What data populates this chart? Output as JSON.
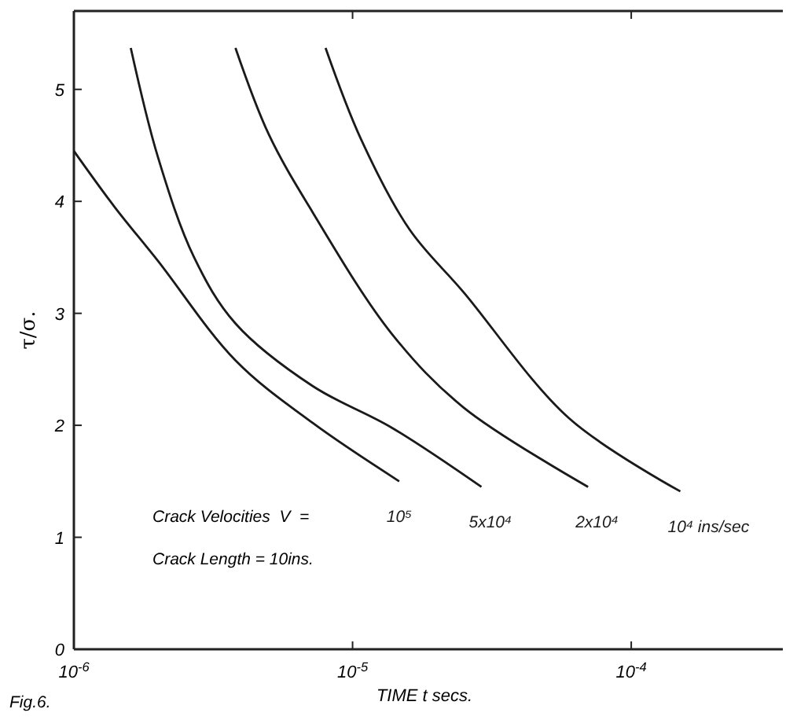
{
  "chart_data": {
    "type": "line",
    "xlabel": "TIME  t secs.",
    "ylabel": "τ/σ.",
    "log": "x",
    "xlim": [
      1e-06,
      0.00035
    ],
    "ylim": [
      0,
      5.7
    ],
    "xticks": [
      {
        "value": 1e-06,
        "label": "10$^{-6}$"
      },
      {
        "value": 1e-05,
        "label": "10$^{-5}$"
      },
      {
        "value": 0.0001,
        "label": "10$^{-4}$"
      }
    ],
    "yticks": [
      0,
      1,
      2,
      3,
      4,
      5
    ],
    "grid": false,
    "marker": "none",
    "line_style": "solid",
    "annotations": [
      "Crack Velocities  V  =",
      "Crack Length = 10ins.",
      "Fig.6."
    ],
    "series": [
      {
        "name": "10⁵",
        "color": "#1a1a1a",
        "x": [
          1e-06,
          1.4e-06,
          2e-06,
          3.8e-06,
          7.2e-06,
          1.47e-05
        ],
        "values": [
          4.45,
          3.95,
          3.47,
          2.58,
          2.02,
          1.5
        ]
      },
      {
        "name": "5x10⁴",
        "color": "#1a1a1a",
        "x": [
          1.6e-06,
          2e-06,
          2.7e-06,
          3.8e-06,
          7.2e-06,
          1.38e-05,
          2.9e-05
        ],
        "values": [
          5.37,
          4.4,
          3.5,
          2.91,
          2.35,
          1.98,
          1.45
        ]
      },
      {
        "name": "2x10⁴",
        "color": "#1a1a1a",
        "x": [
          3.8e-06,
          5e-06,
          7.2e-06,
          1.38e-05,
          2.5e-05,
          7e-05
        ],
        "values": [
          5.37,
          4.6,
          3.9,
          2.82,
          2.16,
          1.45
        ]
      },
      {
        "name": "10⁴ ins/sec",
        "color": "#1a1a1a",
        "x": [
          8e-06,
          1.07e-05,
          1.6e-05,
          2.5e-05,
          6e-05,
          0.00015
        ],
        "values": [
          5.37,
          4.56,
          3.75,
          3.19,
          2.06,
          1.41
        ]
      }
    ]
  }
}
